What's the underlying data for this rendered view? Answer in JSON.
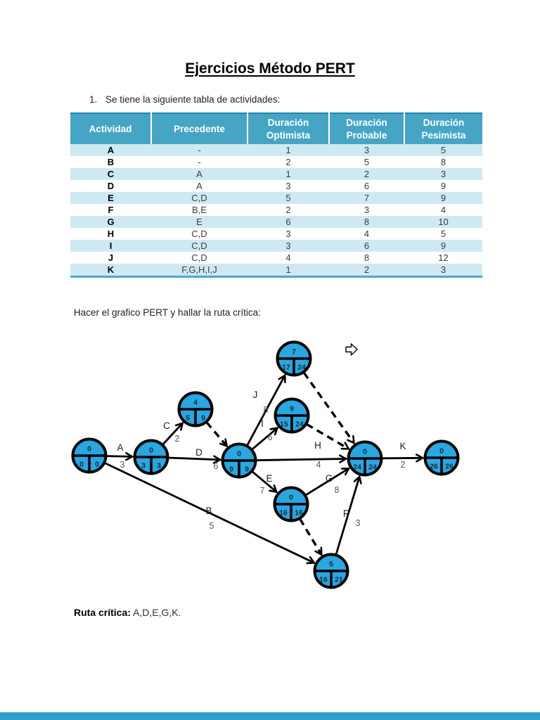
{
  "page": {
    "title": "Ejercicios Método PERT",
    "exercise_number": "1.",
    "exercise_text": "Se tiene la siguiente tabla de actividades:",
    "diagram_caption": "Hacer el grafico PERT y hallar la ruta crítica:",
    "critical_path_label": "Ruta crítica:",
    "critical_path_value": "A,D,E,G,K."
  },
  "colors": {
    "header_bg": "#46a5c5",
    "stripe_bg": "#cfe9f3",
    "node_fill": "#2aa6e0",
    "footer_bar": "#2d9fc8"
  },
  "table": {
    "headers": [
      "Actividad",
      "Precedente",
      "Duración Optimista",
      "Duración Probable",
      "Duración Pesimista"
    ],
    "rows": [
      [
        "A",
        "-",
        "1",
        "3",
        "5"
      ],
      [
        "B",
        "-",
        "2",
        "5",
        "8"
      ],
      [
        "C",
        "A",
        "1",
        "2",
        "3"
      ],
      [
        "D",
        "A",
        "3",
        "6",
        "9"
      ],
      [
        "E",
        "C,D",
        "5",
        "7",
        "9"
      ],
      [
        "F",
        "B,E",
        "2",
        "3",
        "4"
      ],
      [
        "G",
        "E",
        "6",
        "8",
        "10"
      ],
      [
        "H",
        "C,D",
        "3",
        "4",
        "5"
      ],
      [
        "I",
        "C,D",
        "3",
        "6",
        "9"
      ],
      [
        "J",
        "C,D",
        "4",
        "8",
        "12"
      ],
      [
        "K",
        "F,G,H,I,J",
        "1",
        "2",
        "3"
      ]
    ]
  },
  "diagram": {
    "type": "pert-network",
    "nodes": [
      {
        "id": "start",
        "slack": "0",
        "early": "0",
        "late": "0"
      },
      {
        "id": "a",
        "slack": "0",
        "early": "3",
        "late": "3"
      },
      {
        "id": "c",
        "slack": "4",
        "early": "5",
        "late": "9"
      },
      {
        "id": "d",
        "slack": "0",
        "early": "9",
        "late": "9"
      },
      {
        "id": "j",
        "slack": "7",
        "early": "17",
        "late": "24"
      },
      {
        "id": "i",
        "slack": "9",
        "early": "15",
        "late": "24"
      },
      {
        "id": "e",
        "slack": "0",
        "early": "16",
        "late": "16"
      },
      {
        "id": "b",
        "slack": "5",
        "early": "16",
        "late": "21"
      },
      {
        "id": "merge",
        "slack": "0",
        "early": "24",
        "late": "24"
      },
      {
        "id": "end",
        "slack": "0",
        "early": "26",
        "late": "26"
      }
    ],
    "edges": [
      {
        "activity": "A",
        "duration": "3",
        "from": "start",
        "to": "a",
        "style": "solid"
      },
      {
        "activity": "B",
        "duration": "5",
        "from": "start",
        "to": "b",
        "style": "solid"
      },
      {
        "activity": "C",
        "duration": "2",
        "from": "a",
        "to": "c",
        "style": "solid"
      },
      {
        "activity": "D",
        "duration": "6",
        "from": "a",
        "to": "d",
        "style": "solid"
      },
      {
        "activity": "J",
        "duration": "8",
        "from": "d",
        "to": "j",
        "style": "solid"
      },
      {
        "activity": "I",
        "duration": "6",
        "from": "d",
        "to": "i",
        "style": "solid"
      },
      {
        "activity": "E",
        "duration": "7",
        "from": "d",
        "to": "e",
        "style": "solid"
      },
      {
        "activity": "H",
        "duration": "4",
        "from": "d",
        "to": "merge",
        "style": "solid"
      },
      {
        "activity": "G",
        "duration": "8",
        "from": "e",
        "to": "merge",
        "style": "solid"
      },
      {
        "activity": "F",
        "duration": "3",
        "from": "b",
        "to": "merge",
        "style": "solid"
      },
      {
        "activity": "K",
        "duration": "2",
        "from": "merge",
        "to": "end",
        "style": "solid"
      },
      {
        "activity": "",
        "duration": "",
        "from": "c",
        "to": "d",
        "style": "dashed"
      },
      {
        "activity": "",
        "duration": "",
        "from": "j",
        "to": "merge",
        "style": "dashed"
      },
      {
        "activity": "",
        "duration": "",
        "from": "i",
        "to": "merge",
        "style": "dashed"
      },
      {
        "activity": "",
        "duration": "",
        "from": "e",
        "to": "b",
        "style": "dashed"
      }
    ],
    "critical_path": [
      "A",
      "D",
      "E",
      "G",
      "K"
    ]
  },
  "icons": {
    "cursor_arrow": "right-block-arrow-cursor"
  }
}
